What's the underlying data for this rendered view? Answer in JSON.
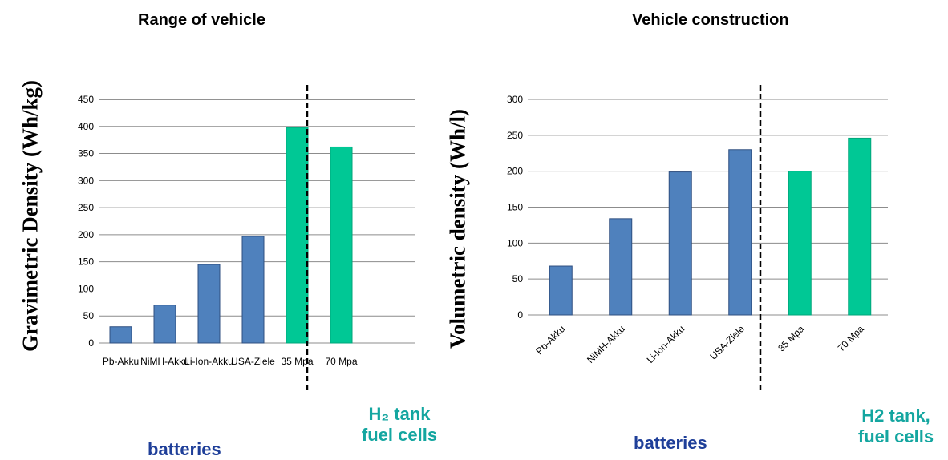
{
  "colors": {
    "battery": "#4f81bd",
    "battery_edge": "#2f4f80",
    "fuel_cell": "#00c895",
    "battery_label": "#1f3f99",
    "fuel_label": "#14a6a0",
    "grid": "#8c8c8c"
  },
  "chart_data": [
    {
      "type": "bar",
      "title": "Range of vehicle",
      "ylabel": "Gravimetric Density (Wh/kg)",
      "categories": [
        "Pb-Akku",
        "NiMH-Akku",
        "Li-Ion-Akku",
        "USA-Ziele",
        "35 Mpa",
        "70 Mpa"
      ],
      "values": [
        30,
        70,
        145,
        197,
        398,
        362
      ],
      "bar_groups": [
        "battery",
        "battery",
        "battery",
        "battery",
        "fuel_cell",
        "fuel_cell"
      ],
      "ylim": [
        0,
        450
      ],
      "yticks": [
        "0",
        "50",
        "100",
        "150",
        "200",
        "250",
        "300",
        "350",
        "400",
        "450"
      ],
      "grid": true,
      "group_labels": {
        "batteries": "batteries",
        "fuel_cells": [
          "H₂ tank",
          "fuel cells"
        ]
      }
    },
    {
      "type": "bar",
      "title": "Vehicle construction",
      "ylabel": "Volumetric density (Wh/l)",
      "categories": [
        "Pb-Akku",
        "NiMH-Akku",
        "Li-Ion-Akku",
        "USA-Ziele",
        "35 Mpa",
        "70 Mpa"
      ],
      "values": [
        68,
        134,
        199,
        230,
        200,
        246
      ],
      "bar_groups": [
        "battery",
        "battery",
        "battery",
        "battery",
        "fuel_cell",
        "fuel_cell"
      ],
      "ylim": [
        0,
        300
      ],
      "yticks": [
        "0",
        "50",
        "100",
        "150",
        "200",
        "250",
        "300"
      ],
      "grid": true,
      "group_labels": {
        "batteries": "batteries",
        "fuel_cells": [
          "H2 tank,",
          "fuel cells"
        ]
      }
    }
  ]
}
